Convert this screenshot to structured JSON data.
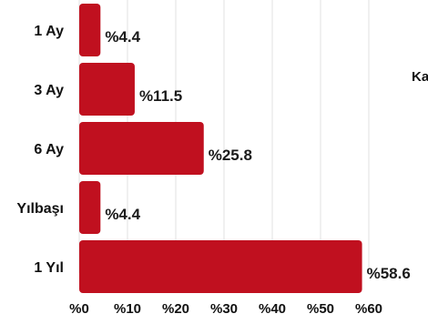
{
  "chart_data": {
    "type": "bar",
    "orientation": "horizontal",
    "categories": [
      "1 Ay",
      "3 Ay",
      "6 Ay",
      "Yılbaşı",
      "1 Yıl"
    ],
    "values": [
      4.4,
      11.5,
      25.8,
      4.4,
      58.6
    ],
    "value_labels": [
      "%4.4",
      "%11.5",
      "%25.8",
      "%4.4",
      "%58.6"
    ],
    "xlim": [
      0,
      60
    ],
    "x_ticks": [
      0,
      10,
      20,
      30,
      40,
      50,
      60
    ],
    "x_tick_labels": [
      "%0",
      "%10",
      "%20",
      "%30",
      "%40",
      "%50",
      "%60"
    ],
    "grid": "vertical",
    "bar_color": "#c0101f",
    "side_text": "Ka"
  }
}
